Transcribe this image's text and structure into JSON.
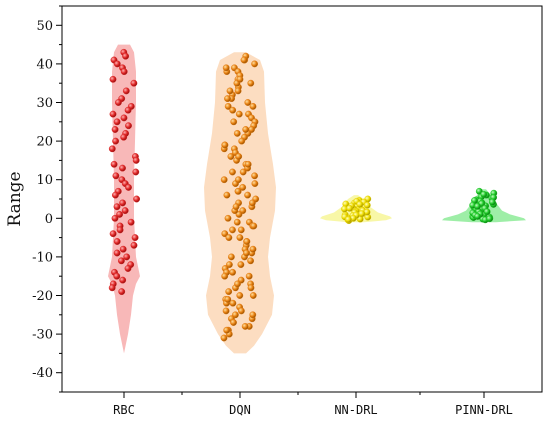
{
  "chart_data": {
    "type": "violin",
    "title": "",
    "xlabel": "",
    "ylabel": "Range",
    "ylim": [
      -45,
      55
    ],
    "y_ticks": [
      50,
      40,
      30,
      20,
      10,
      0,
      -10,
      -20,
      -30,
      -40
    ],
    "categories": [
      "RBC",
      "DQN",
      "NN-DRL",
      "PINN-DRL"
    ],
    "grid": false,
    "legend": "none",
    "series": [
      {
        "category": "RBC",
        "fill_color": "#f5a0a0",
        "point_color": "#d42020",
        "range": [
          -35,
          45
        ],
        "points": [
          43,
          42,
          41,
          40,
          39,
          38,
          36,
          35,
          33,
          31,
          30,
          29,
          28,
          27,
          26,
          25,
          24,
          23,
          22,
          21,
          20,
          18,
          16,
          15,
          14,
          13,
          12,
          11,
          10,
          9,
          8,
          7,
          6,
          5,
          4,
          3,
          2,
          1,
          0,
          -1,
          -2,
          -3,
          -4,
          -5,
          -6,
          -7,
          -8,
          -9,
          -10,
          -11,
          -12,
          -13,
          -14,
          -15,
          -16,
          -17,
          -18,
          -19
        ]
      },
      {
        "category": "DQN",
        "fill_color": "#fbd2ac",
        "point_color": "#e07810",
        "range": [
          -35,
          43
        ],
        "points": [
          42,
          41,
          40,
          39,
          38,
          37,
          36,
          35,
          34,
          33,
          32,
          31,
          30,
          29,
          28,
          27,
          26,
          25,
          24,
          23,
          22,
          21,
          20,
          19,
          18,
          17,
          16,
          15,
          14,
          13,
          12,
          11,
          10,
          9,
          8,
          7,
          6,
          5,
          4,
          3,
          2,
          1,
          0,
          -1,
          -2,
          -3,
          -4,
          -5,
          -6,
          -7,
          -8,
          -9,
          -10,
          -11,
          -12,
          -13,
          -14,
          -15,
          -16,
          -17,
          -18,
          -19,
          -20,
          -21,
          -22,
          -23,
          -24,
          -25,
          -26,
          -27,
          -28,
          -29,
          -30,
          -31,
          41,
          38,
          35,
          31,
          27,
          22,
          18,
          14,
          10,
          6,
          2,
          -2,
          -6,
          -10,
          -14,
          -18,
          -22,
          -26,
          -29,
          39,
          33,
          25,
          19,
          12,
          7,
          3,
          -3,
          -8,
          -12,
          -17,
          -21,
          -25,
          -28,
          36,
          29,
          23,
          16,
          9,
          4,
          -1,
          -5,
          -9,
          -15,
          -20,
          -24
        ]
      },
      {
        "category": "NN-DRL",
        "fill_color": "#f6f48a",
        "point_color": "#e6d000",
        "range": [
          -1,
          6
        ],
        "points": [
          5,
          4.6,
          4.2,
          4,
          3.7,
          3.4,
          3.1,
          2.8,
          2.5,
          2.2,
          2,
          1.8,
          1.5,
          1.3,
          1.1,
          0.9,
          0.7,
          0.5,
          0.3,
          0.2,
          0.1,
          -0.2,
          -0.4,
          -0.6,
          4.4,
          3.2,
          2.4,
          1.6,
          0.8,
          0.4,
          0,
          -0.3,
          3.6,
          2.6,
          1.2
        ]
      },
      {
        "category": "PINN-DRL",
        "fill_color": "#7ee88a",
        "point_color": "#18c020",
        "range": [
          -1,
          7.5
        ],
        "points": [
          7,
          6.5,
          6,
          5.6,
          5.2,
          4.8,
          4.4,
          4,
          3.6,
          3.2,
          2.8,
          2.4,
          2,
          1.6,
          1.3,
          1,
          0.7,
          0.4,
          0.2,
          0,
          -0.2,
          -0.4,
          5.4,
          4.6,
          3.8,
          3,
          2.2,
          1.4,
          0.8,
          0.3,
          4.2,
          3.4,
          2.6,
          1.8,
          1.1,
          0.5,
          -0.1,
          6.2,
          3.1,
          1.7
        ]
      }
    ]
  }
}
